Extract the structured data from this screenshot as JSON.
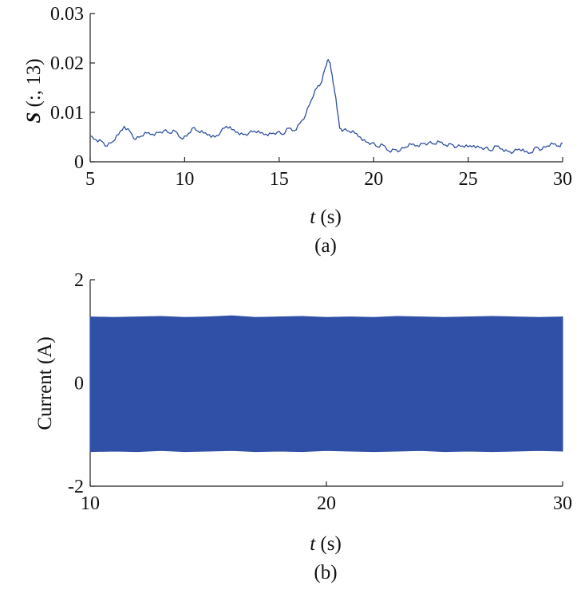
{
  "chart_data": [
    {
      "type": "line",
      "panel_label": "(a)",
      "xlabel": {
        "var": "t",
        "unit": "(s)"
      },
      "ylabel": {
        "var": "S",
        "rest": "(:, 13)"
      },
      "xlim": [
        5,
        30
      ],
      "ylim": [
        0,
        0.03
      ],
      "xticks": [
        "5",
        "10",
        "15",
        "20",
        "25",
        "30"
      ],
      "yticks": [
        "0",
        "0.01",
        "0.02",
        "0.03"
      ],
      "grid": false,
      "color": "#2f4f9e",
      "series": [
        {
          "x": [
            5.0,
            5.3,
            5.6,
            5.9,
            6.2,
            6.5,
            6.8,
            7.1,
            7.4,
            7.7,
            8.0,
            8.3,
            8.6,
            8.9,
            9.2,
            9.5,
            9.8,
            10.1,
            10.4,
            10.7,
            11.0,
            11.3,
            11.6,
            11.9,
            12.2,
            12.5,
            12.8,
            13.1,
            13.4,
            13.7,
            14.0,
            14.3,
            14.6,
            14.9,
            15.2,
            15.5,
            15.8,
            16.1,
            16.4,
            16.7,
            17.0,
            17.2,
            17.4,
            17.55,
            17.7,
            17.85,
            18.0,
            18.2,
            18.4,
            18.7,
            19.0,
            19.3,
            19.6,
            19.9,
            20.2,
            20.5,
            20.8,
            21.1,
            21.4,
            21.7,
            22.0,
            22.3,
            22.6,
            22.9,
            23.2,
            23.5,
            23.8,
            24.1,
            24.4,
            24.7,
            25.0,
            25.3,
            25.6,
            25.9,
            26.2,
            26.5,
            26.8,
            27.1,
            27.4,
            27.7,
            28.0,
            28.3,
            28.6,
            28.9,
            29.2,
            29.5,
            29.8,
            30.0
          ],
          "y": [
            0.0052,
            0.0045,
            0.0042,
            0.0032,
            0.0041,
            0.0055,
            0.0072,
            0.0062,
            0.0045,
            0.0052,
            0.0058,
            0.0056,
            0.0059,
            0.0063,
            0.0058,
            0.0062,
            0.0048,
            0.0052,
            0.0068,
            0.0062,
            0.0058,
            0.0055,
            0.005,
            0.006,
            0.0072,
            0.0065,
            0.006,
            0.0055,
            0.0058,
            0.0062,
            0.0058,
            0.0056,
            0.0057,
            0.006,
            0.0055,
            0.0068,
            0.0063,
            0.0078,
            0.0095,
            0.0125,
            0.015,
            0.0158,
            0.0185,
            0.0205,
            0.02,
            0.016,
            0.013,
            0.0068,
            0.0064,
            0.0062,
            0.0058,
            0.005,
            0.004,
            0.0038,
            0.003,
            0.0034,
            0.0022,
            0.0025,
            0.0023,
            0.003,
            0.0035,
            0.0033,
            0.0037,
            0.0038,
            0.0036,
            0.004,
            0.0034,
            0.0036,
            0.003,
            0.0032,
            0.003,
            0.0033,
            0.0029,
            0.0028,
            0.0022,
            0.0032,
            0.0026,
            0.0021,
            0.002,
            0.0026,
            0.002,
            0.0018,
            0.003,
            0.0025,
            0.0032,
            0.0036,
            0.0032,
            0.0038
          ]
        }
      ]
    },
    {
      "type": "area",
      "panel_label": "(b)",
      "xlabel": {
        "var": "t",
        "unit": "(s)"
      },
      "ylabel": {
        "text": "Current (A)"
      },
      "xlim": [
        10,
        30
      ],
      "ylim": [
        -2,
        2
      ],
      "xticks": [
        "10",
        "20",
        "30"
      ],
      "yticks": [
        "-2",
        "0",
        "2"
      ],
      "grid": false,
      "color": "#3050a8",
      "series": [
        {
          "x": [
            10,
            11,
            12,
            13,
            14,
            15,
            16,
            17,
            18,
            19,
            20,
            21,
            22,
            23,
            24,
            25,
            26,
            27,
            28,
            29,
            30
          ],
          "upper": [
            1.28,
            1.27,
            1.28,
            1.29,
            1.27,
            1.28,
            1.3,
            1.27,
            1.28,
            1.29,
            1.27,
            1.28,
            1.27,
            1.29,
            1.28,
            1.27,
            1.28,
            1.29,
            1.28,
            1.27,
            1.28
          ],
          "lower": [
            -1.33,
            -1.32,
            -1.33,
            -1.31,
            -1.33,
            -1.32,
            -1.31,
            -1.33,
            -1.32,
            -1.33,
            -1.31,
            -1.32,
            -1.33,
            -1.32,
            -1.31,
            -1.33,
            -1.32,
            -1.33,
            -1.32,
            -1.31,
            -1.32
          ]
        }
      ]
    }
  ]
}
